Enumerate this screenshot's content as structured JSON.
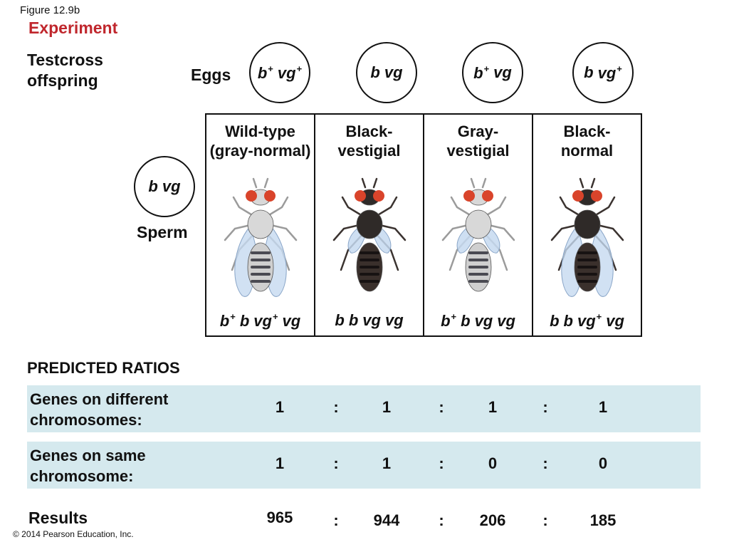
{
  "figure_label": "Figure 12.9b",
  "experiment_label": "Experiment",
  "offspring_label": [
    "Testcross",
    "offspring"
  ],
  "eggs_label": "Eggs",
  "sperm_label": "Sperm",
  "colors": {
    "heading_red": "#c0272d",
    "row_fill": "#d5e9ee"
  },
  "eggs": [
    [
      {
        "t": "b",
        "sup": "+"
      },
      {
        "t": "vg",
        "sup": "+"
      }
    ],
    [
      {
        "t": "b"
      },
      {
        "t": "vg"
      }
    ],
    [
      {
        "t": "b",
        "sup": "+"
      },
      {
        "t": "vg"
      }
    ],
    [
      {
        "t": "b"
      },
      {
        "t": "vg",
        "sup": "+"
      }
    ]
  ],
  "sperm": [
    {
      "t": "b"
    },
    {
      "t": "vg"
    }
  ],
  "offspring": [
    {
      "title": [
        "Wild-type",
        "(gray-normal)"
      ],
      "body": "gray",
      "wings": "normal",
      "genotype": [
        {
          "t": "b",
          "sup": "+"
        },
        {
          "t": "b"
        },
        {
          "t": "vg",
          "sup": "+"
        },
        {
          "t": "vg"
        }
      ]
    },
    {
      "title": [
        "Black-",
        "vestigial"
      ],
      "body": "black",
      "wings": "vestigial",
      "genotype": [
        {
          "t": "b"
        },
        {
          "t": "b"
        },
        {
          "t": "vg"
        },
        {
          "t": "vg"
        }
      ]
    },
    {
      "title": [
        "Gray-",
        "vestigial"
      ],
      "body": "gray",
      "wings": "vestigial",
      "genotype": [
        {
          "t": "b",
          "sup": "+"
        },
        {
          "t": "b"
        },
        {
          "t": "vg"
        },
        {
          "t": "vg"
        }
      ]
    },
    {
      "title": [
        "Black-",
        "normal"
      ],
      "body": "black",
      "wings": "normal",
      "genotype": [
        {
          "t": "b"
        },
        {
          "t": "b"
        },
        {
          "t": "vg",
          "sup": "+"
        },
        {
          "t": "vg"
        }
      ]
    }
  ],
  "predicted_title": "PREDICTED RATIOS",
  "ratio_rows": [
    {
      "label": [
        "Genes on different",
        "chromosomes:"
      ],
      "values": [
        "1",
        "1",
        "1",
        "1"
      ]
    },
    {
      "label": [
        "Genes on same",
        "chromosome:"
      ],
      "values": [
        "1",
        "1",
        "0",
        "0"
      ]
    }
  ],
  "results_label": "Results",
  "results_values": [
    "965",
    "944",
    "206",
    "185"
  ],
  "separator": ":",
  "copyright": "© 2014 Pearson Education, Inc."
}
